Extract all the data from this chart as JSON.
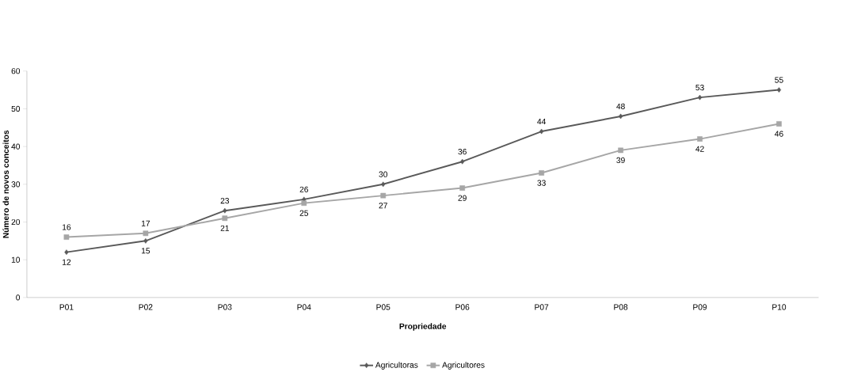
{
  "chart_data": {
    "type": "line",
    "xlabel": "Propriedade",
    "ylabel": "Número de novos conceitos",
    "categories": [
      "P01",
      "P02",
      "P03",
      "P04",
      "P05",
      "P06",
      "P07",
      "P08",
      "P09",
      "P10"
    ],
    "series": [
      {
        "name": "Agricultoras",
        "color": "#595959",
        "marker": "diamond",
        "values": [
          12,
          15,
          23,
          26,
          30,
          36,
          44,
          48,
          53,
          55
        ]
      },
      {
        "name": "Agricultores",
        "color": "#a6a6a6",
        "marker": "square",
        "values": [
          16,
          17,
          21,
          25,
          27,
          29,
          33,
          39,
          42,
          46
        ]
      }
    ],
    "ylim": [
      0,
      60
    ],
    "yticks": [
      0,
      10,
      20,
      30,
      40,
      50,
      60
    ],
    "data_labels": true,
    "legend": "bottom",
    "grid": false,
    "line_style": "solid"
  }
}
